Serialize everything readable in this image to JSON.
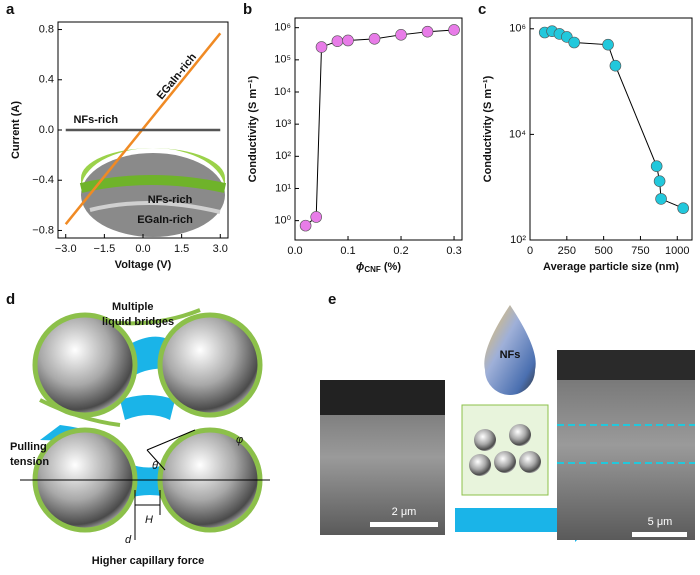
{
  "chart_data": [
    {
      "type": "line",
      "label": "a",
      "x_label": "Voltage (V)",
      "y_label": "Current (A)",
      "xlim": [
        -3.3,
        3.3
      ],
      "ylim": [
        -0.86,
        0.86
      ],
      "xticks": [
        {
          "value": -3,
          "label": "−3.0"
        },
        {
          "value": -1.5,
          "label": "−1.5"
        },
        {
          "value": 0,
          "label": "0.0"
        },
        {
          "value": 1.5,
          "label": "1.5"
        },
        {
          "value": 3,
          "label": "3.0"
        }
      ],
      "yticks": [
        {
          "value": -0.8,
          "label": "−0.8"
        },
        {
          "value": -0.4,
          "label": "−0.4"
        },
        {
          "value": 0,
          "label": "0.0"
        },
        0.4,
        0.8
      ],
      "series": [
        {
          "name": "EGaIn-rich",
          "color": "#f08a24",
          "x": [
            -3,
            3
          ],
          "values": [
            -0.75,
            0.77
          ]
        },
        {
          "name": "NFs-rich",
          "color": "#555555",
          "x": [
            -3,
            3
          ],
          "values": [
            0,
            0
          ]
        }
      ],
      "annotations": [
        "NFs-rich",
        "EGaIn-rich"
      ]
    },
    {
      "type": "line",
      "label": "b",
      "x_label": {
        "symbol": "ϕ",
        "subscript": "CNF",
        "unit": " (%)"
      },
      "y_label": "Conductivity (S m⁻¹)",
      "log_y": true,
      "markers": true,
      "xlim": [
        0,
        0.315
      ],
      "ylim": [
        0.25,
        2000000
      ],
      "xticks": [
        {
          "value": 0,
          "label": "0.0"
        },
        0.1,
        0.2,
        0.3
      ],
      "yticks": [
        {
          "value": 1,
          "label": "10⁰"
        },
        {
          "value": 10,
          "label": "10¹"
        },
        {
          "value": 100,
          "label": "10²"
        },
        {
          "value": 1000,
          "label": "10³"
        },
        {
          "value": 10000,
          "label": "10⁴"
        },
        {
          "value": 100000,
          "label": "10⁵"
        },
        {
          "value": 1000000,
          "label": "10⁶"
        }
      ],
      "series": [
        {
          "color": "#e87ce8",
          "x": [
            0.02,
            0.04,
            0.05,
            0.08,
            0.1,
            0.15,
            0.2,
            0.25,
            0.3
          ],
          "values": [
            0.7,
            1.3,
            250000,
            380000,
            400000,
            450000,
            600000,
            750000,
            850000
          ]
        }
      ]
    },
    {
      "type": "line",
      "label": "c",
      "x_label": "Average particle size (nm)",
      "y_label": "Conductivity (S m⁻¹)",
      "log_y": true,
      "markers": true,
      "xlim": [
        0,
        1100
      ],
      "ylim": [
        100,
        1600000
      ],
      "xticks": [
        0,
        250,
        500,
        750,
        1000
      ],
      "yticks": [
        {
          "value": 100,
          "label": "10²"
        },
        {
          "value": 10000,
          "label": "10⁴"
        },
        {
          "value": 1000000,
          "label": "10⁶"
        }
      ],
      "series": [
        {
          "color": "#22c8dc",
          "x": [
            100,
            150,
            200,
            250,
            300,
            530,
            580,
            860,
            880,
            890,
            1040
          ],
          "values": [
            850000,
            900000,
            800000,
            700000,
            550000,
            500000,
            200000,
            2500,
            1300,
            600,
            400
          ]
        }
      ]
    }
  ],
  "figure": {
    "panel_d": {
      "label": "d",
      "bridges": [
        "Multiple",
        "liquid bridges"
      ],
      "tension": [
        "Pulling",
        "tension"
      ],
      "theta": "θ",
      "phi": "φ",
      "H": "H",
      "d": "d",
      "caption": "Higher capillary force"
    },
    "panel_e": {
      "label": "e",
      "drop": "NFs",
      "scale_left": "2 μm",
      "scale_right": "5 μm"
    }
  }
}
